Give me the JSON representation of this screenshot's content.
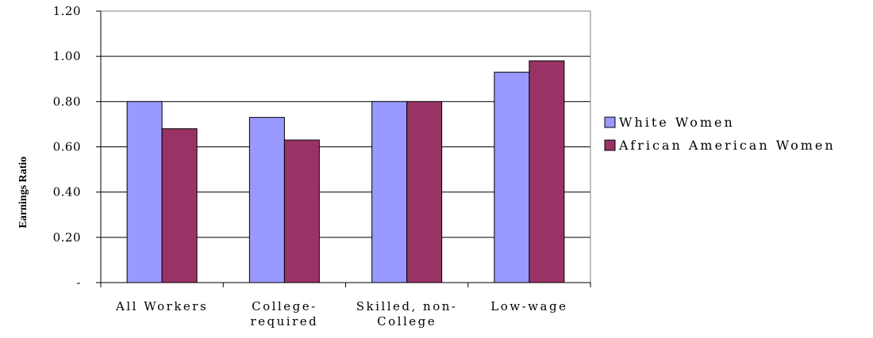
{
  "chart_data": {
    "type": "bar",
    "title": "",
    "xlabel": "",
    "ylabel": "Earnings Ratio",
    "ylim": [
      0,
      1.2
    ],
    "yticks": [
      0,
      0.2,
      0.4,
      0.6,
      0.8,
      1.0,
      1.2
    ],
    "ytick_labels": [
      "-",
      "0.20",
      "0.40",
      "0.60",
      "0.80",
      "1.00",
      "1.20"
    ],
    "categories": [
      "All Workers",
      "College-required",
      "Skilled, non-College",
      "Low-wage"
    ],
    "category_lines": [
      [
        "All Workers"
      ],
      [
        "College-",
        "required"
      ],
      [
        "Skilled, non-",
        "College"
      ],
      [
        "Low-wage"
      ]
    ],
    "series": [
      {
        "name": "White Women",
        "values": [
          0.8,
          0.73,
          0.8,
          0.93
        ],
        "color": "#9999ff"
      },
      {
        "name": "African American Women",
        "values": [
          0.68,
          0.63,
          0.8,
          0.98
        ],
        "color": "#993366"
      }
    ],
    "grid": true,
    "legend": "right"
  }
}
